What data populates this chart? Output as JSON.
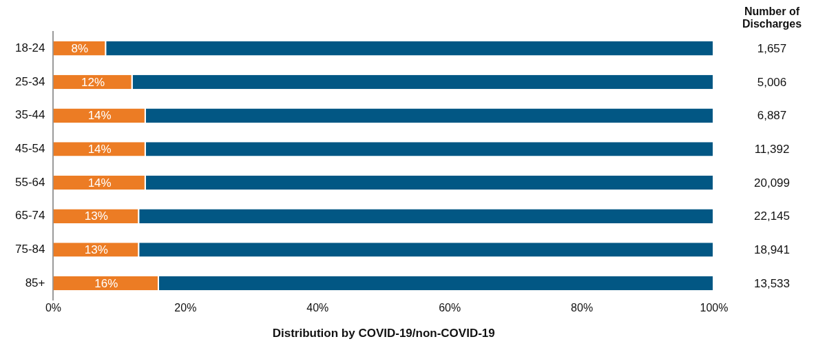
{
  "chart_data": {
    "type": "bar",
    "orientation": "horizontal",
    "stacked": true,
    "xlabel": "Distribution by COVID-19/non-COVID-19",
    "categories": [
      "18-24",
      "25-34",
      "35-44",
      "45-54",
      "55-64",
      "65-74",
      "75-84",
      "85+"
    ],
    "series": [
      {
        "color": "#ec7c24",
        "values": [
          8,
          12,
          14,
          14,
          14,
          13,
          13,
          16
        ],
        "value_labels": [
          "8%",
          "12%",
          "14%",
          "14%",
          "14%",
          "13%",
          "13%",
          "16%"
        ]
      },
      {
        "color": "#025784",
        "values": [
          92,
          88,
          86,
          86,
          86,
          87,
          87,
          84
        ]
      }
    ],
    "xlim": [
      0,
      100
    ],
    "xticks": [
      {
        "value": 0,
        "label": "0%"
      },
      {
        "value": 20,
        "label": "20%"
      },
      {
        "value": 40,
        "label": "40%"
      },
      {
        "value": 60,
        "label": "60%"
      },
      {
        "value": 80,
        "label": "80%"
      },
      {
        "value": 100,
        "label": "100%"
      }
    ],
    "grid": false,
    "legend": false,
    "annotations": [
      "Number of Discharges",
      "1,657",
      "5,006",
      "6,887",
      "11,392",
      "20,099",
      "22,145",
      "18,941",
      "13,533"
    ]
  }
}
